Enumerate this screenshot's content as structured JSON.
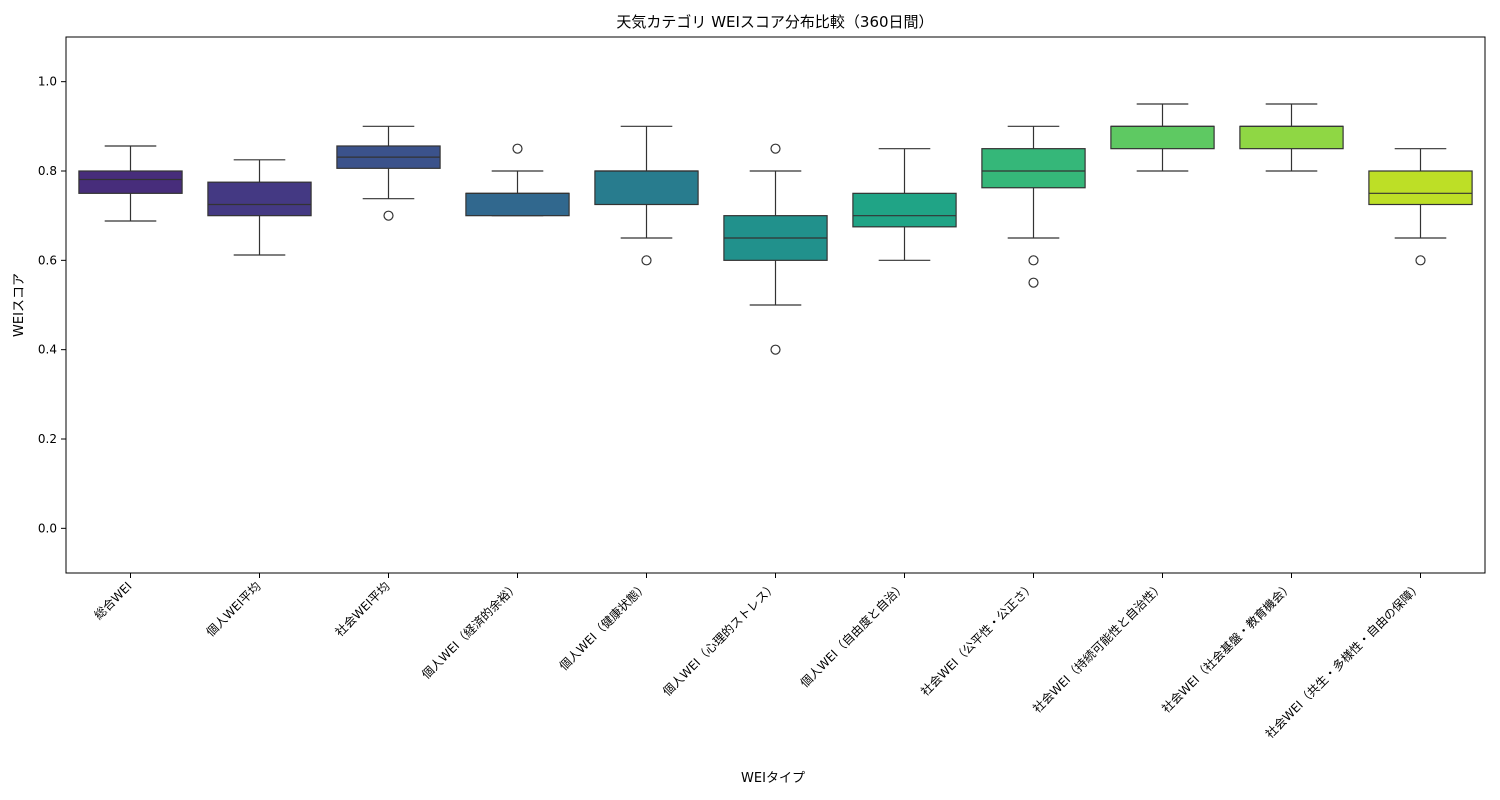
{
  "chart_data": {
    "type": "box",
    "title": "天気カテゴリ WEIスコア分布比較（360日間）",
    "xlabel": "WEIタイプ",
    "ylabel": "WEIスコア",
    "ylim": [
      -0.1,
      1.1
    ],
    "yticks": [
      0.0,
      0.2,
      0.4,
      0.6,
      0.8,
      1.0
    ],
    "ytick_labels": [
      "0.0",
      "0.2",
      "0.4",
      "0.6",
      "0.8",
      "1.0"
    ],
    "grid": false,
    "legend": "none",
    "categories": [
      "総合WEI",
      "個人WEI平均",
      "社会WEI平均",
      "個人WEI（経済的余裕）",
      "個人WEI（健康状態）",
      "個人WEI（心理的ストレス）",
      "個人WEI（自由度と自治）",
      "社会WEI（公平性・公正さ）",
      "社会WEI（持続可能性と自治性）",
      "社会WEI（社会基盤・教育機会）",
      "社会WEI（共生・多様性・自由の保障）"
    ],
    "boxes": [
      {
        "whisker_low": 0.688,
        "q1": 0.75,
        "median": 0.781,
        "q3": 0.8,
        "whisker_high": 0.856,
        "outliers": [],
        "color": "#472d7b"
      },
      {
        "whisker_low": 0.612,
        "q1": 0.7,
        "median": 0.725,
        "q3": 0.775,
        "whisker_high": 0.825,
        "outliers": [],
        "color": "#443983"
      },
      {
        "whisker_low": 0.738,
        "q1": 0.806,
        "median": 0.831,
        "q3": 0.856,
        "whisker_high": 0.9,
        "outliers": [
          0.7
        ],
        "color": "#3b528b"
      },
      {
        "whisker_low": 0.7,
        "q1": 0.7,
        "median": 0.75,
        "q3": 0.75,
        "whisker_high": 0.8,
        "outliers": [
          0.85
        ],
        "color": "#31688e"
      },
      {
        "whisker_low": 0.65,
        "q1": 0.725,
        "median": 0.8,
        "q3": 0.8,
        "whisker_high": 0.9,
        "outliers": [
          0.6
        ],
        "color": "#287c8e"
      },
      {
        "whisker_low": 0.5,
        "q1": 0.6,
        "median": 0.65,
        "q3": 0.7,
        "whisker_high": 0.8,
        "outliers": [
          0.85,
          0.4
        ],
        "color": "#21918c"
      },
      {
        "whisker_low": 0.6,
        "q1": 0.675,
        "median": 0.7,
        "q3": 0.75,
        "whisker_high": 0.85,
        "outliers": [],
        "color": "#20a486"
      },
      {
        "whisker_low": 0.65,
        "q1": 0.7625,
        "median": 0.8,
        "q3": 0.85,
        "whisker_high": 0.9,
        "outliers": [
          0.6,
          0.55
        ],
        "color": "#35b779"
      },
      {
        "whisker_low": 0.8,
        "q1": 0.85,
        "median": 0.9,
        "q3": 0.9,
        "whisker_high": 0.95,
        "outliers": [],
        "color": "#5ec962"
      },
      {
        "whisker_low": 0.8,
        "q1": 0.85,
        "median": 0.9,
        "q3": 0.9,
        "whisker_high": 0.95,
        "outliers": [],
        "color": "#8fd744"
      },
      {
        "whisker_low": 0.65,
        "q1": 0.725,
        "median": 0.75,
        "q3": 0.8,
        "whisker_high": 0.85,
        "outliers": [
          0.6
        ],
        "color": "#bddf26"
      }
    ]
  }
}
